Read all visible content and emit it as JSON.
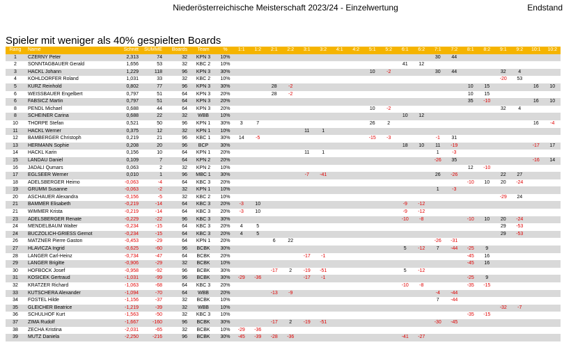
{
  "page": {
    "title": "Niederösterreichische Meisterschaft 2023/24 - Einzelwertung",
    "status": "Endstand",
    "subtitle": "Spieler mit weniger als 40% gespielten Boards"
  },
  "colors": {
    "header_bg": "#f5b400",
    "row_alt": "#d9d9d9",
    "negative": "#e00000"
  },
  "columns": [
    "Rang",
    "Name",
    "Schnitt",
    "SUMME",
    "Boards",
    "Team",
    "%",
    "1:1",
    "1:2",
    "2:1",
    "2:2",
    "3:1",
    "3:2",
    "4:1",
    "4:2",
    "5:1",
    "5:2",
    "6:1",
    "6:2",
    "7:1",
    "7:2",
    "8:1",
    "8:2",
    "9:1",
    "9:2",
    "10:1",
    "10:2"
  ],
  "rows": [
    {
      "rang": "1",
      "name": "CZERNY Peter",
      "schnitt": "2,313",
      "summe": "74",
      "boards": "32",
      "team": "KPN 3",
      "pct": "10%",
      "scores": [
        "",
        "",
        "",
        "",
        "",
        "",
        "",
        "",
        "",
        "",
        "",
        "",
        "30",
        "44",
        "",
        "",
        "",
        "",
        "",
        ""
      ]
    },
    {
      "rang": "2",
      "name": "SONNTAGBAUER Gerald",
      "schnitt": "1,656",
      "summe": "53",
      "boards": "32",
      "team": "KBC 2",
      "pct": "10%",
      "scores": [
        "",
        "",
        "",
        "",
        "",
        "",
        "",
        "",
        "",
        "",
        "41",
        "12",
        "",
        "",
        "",
        "",
        "",
        "",
        "",
        ""
      ]
    },
    {
      "rang": "3",
      "name": "HACKL Johann",
      "schnitt": "1,229",
      "summe": "118",
      "boards": "96",
      "team": "KPN 3",
      "pct": "30%",
      "scores": [
        "",
        "",
        "",
        "",
        "",
        "",
        "",
        "",
        "10",
        "-2",
        "",
        "",
        "30",
        "44",
        "",
        "",
        "32",
        "4",
        "",
        ""
      ]
    },
    {
      "rang": "4",
      "name": "KÖHLDORFER Roland",
      "schnitt": "1,031",
      "summe": "33",
      "boards": "32",
      "team": "KBC 2",
      "pct": "10%",
      "scores": [
        "",
        "",
        "",
        "",
        "",
        "",
        "",
        "",
        "",
        "",
        "",
        "",
        "",
        "",
        "",
        "",
        "-20",
        "53",
        "",
        ""
      ]
    },
    {
      "rang": "5",
      "name": "KURZ Reinhold",
      "schnitt": "0,802",
      "summe": "77",
      "boards": "96",
      "team": "KPN 3",
      "pct": "30%",
      "scores": [
        "",
        "",
        "28",
        "-2",
        "",
        "",
        "",
        "",
        "",
        "",
        "",
        "",
        "",
        "",
        "10",
        "15",
        "",
        "",
        "16",
        "10"
      ]
    },
    {
      "rang": "6",
      "name": "WEISSBAUER Engelbert",
      "schnitt": "0,797",
      "summe": "51",
      "boards": "64",
      "team": "KPN 3",
      "pct": "20%",
      "scores": [
        "",
        "",
        "28",
        "-2",
        "",
        "",
        "",
        "",
        "",
        "",
        "",
        "",
        "",
        "",
        "10",
        "15",
        "",
        "",
        "",
        ""
      ]
    },
    {
      "rang": "6",
      "name": "FABSICZ Martin",
      "schnitt": "0,797",
      "summe": "51",
      "boards": "64",
      "team": "KPN 3",
      "pct": "20%",
      "scores": [
        "",
        "",
        "",
        "",
        "",
        "",
        "",
        "",
        "",
        "",
        "",
        "",
        "",
        "",
        "35",
        "-10",
        "",
        "",
        "16",
        "10"
      ]
    },
    {
      "rang": "8",
      "name": "PENDL Michael",
      "schnitt": "0,688",
      "summe": "44",
      "boards": "64",
      "team": "KPN 3",
      "pct": "20%",
      "scores": [
        "",
        "",
        "",
        "",
        "",
        "",
        "",
        "",
        "10",
        "-2",
        "",
        "",
        "",
        "",
        "",
        "",
        "32",
        "4",
        "",
        ""
      ]
    },
    {
      "rang": "8",
      "name": "SCHEINER Carina",
      "schnitt": "0,688",
      "summe": "22",
      "boards": "32",
      "team": "WBB",
      "pct": "10%",
      "scores": [
        "",
        "",
        "",
        "",
        "",
        "",
        "",
        "",
        "",
        "",
        "10",
        "12",
        "",
        "",
        "",
        "",
        "",
        "",
        "",
        ""
      ]
    },
    {
      "rang": "10",
      "name": "THORPE Stefan",
      "schnitt": "0,521",
      "summe": "50",
      "boards": "96",
      "team": "KPN 1",
      "pct": "30%",
      "scores": [
        "3",
        "7",
        "",
        "",
        "",
        "",
        "",
        "",
        "26",
        "2",
        "",
        "",
        "",
        "",
        "",
        "",
        "",
        "",
        "16",
        "-4"
      ]
    },
    {
      "rang": "11",
      "name": "HACKL Werner",
      "schnitt": "0,375",
      "summe": "12",
      "boards": "32",
      "team": "KPN 1",
      "pct": "10%",
      "scores": [
        "",
        "",
        "",
        "",
        "11",
        "1",
        "",
        "",
        "",
        "",
        "",
        "",
        "",
        "",
        "",
        "",
        "",
        "",
        "",
        ""
      ]
    },
    {
      "rang": "12",
      "name": "BAMBERGER Christoph",
      "schnitt": "0,219",
      "summe": "21",
      "boards": "96",
      "team": "KBC 1",
      "pct": "30%",
      "scores": [
        "14",
        "-5",
        "",
        "",
        "",
        "",
        "",
        "",
        "-15",
        "-3",
        "",
        "",
        "-1",
        "31",
        "",
        "",
        "",
        "",
        "",
        ""
      ]
    },
    {
      "rang": "13",
      "name": "HERMANN Sophie",
      "schnitt": "0,208",
      "summe": "20",
      "boards": "96",
      "team": "BCP",
      "pct": "30%",
      "scores": [
        "",
        "",
        "",
        "",
        "",
        "",
        "",
        "",
        "",
        "",
        "18",
        "10",
        "11",
        "-19",
        "",
        "",
        "",
        "",
        "-17",
        "17"
      ]
    },
    {
      "rang": "14",
      "name": "HACKL Karin",
      "schnitt": "0,156",
      "summe": "10",
      "boards": "64",
      "team": "KPN 1",
      "pct": "20%",
      "scores": [
        "",
        "",
        "",
        "",
        "11",
        "1",
        "",
        "",
        "",
        "",
        "",
        "",
        "1",
        "-3",
        "",
        "",
        "",
        "",
        "",
        ""
      ]
    },
    {
      "rang": "15",
      "name": "LANDAU Daniel",
      "schnitt": "0,109",
      "summe": "7",
      "boards": "64",
      "team": "KPN 2",
      "pct": "20%",
      "scores": [
        "",
        "",
        "",
        "",
        "",
        "",
        "",
        "",
        "",
        "",
        "",
        "",
        "-26",
        "35",
        "",
        "",
        "",
        "",
        "-16",
        "14"
      ]
    },
    {
      "rang": "16",
      "name": "JADALI Qumars",
      "schnitt": "0,063",
      "summe": "2",
      "boards": "32",
      "team": "KPN 2",
      "pct": "10%",
      "scores": [
        "",
        "",
        "",
        "",
        "",
        "",
        "",
        "",
        "",
        "",
        "",
        "",
        "",
        "",
        "12",
        "-10",
        "",
        "",
        "",
        ""
      ]
    },
    {
      "rang": "17",
      "name": "EGLSEER Werner",
      "schnitt": "0,010",
      "summe": "1",
      "boards": "96",
      "team": "MBC 1",
      "pct": "30%",
      "scores": [
        "",
        "",
        "",
        "",
        "-7",
        "-41",
        "",
        "",
        "",
        "",
        "",
        "",
        "26",
        "-26",
        "",
        "",
        "22",
        "27",
        "",
        ""
      ]
    },
    {
      "rang": "18",
      "name": "ADELSBERGER Heimo",
      "schnitt": "-0,063",
      "summe": "-4",
      "boards": "64",
      "team": "KBC 3",
      "pct": "20%",
      "scores": [
        "",
        "",
        "",
        "",
        "",
        "",
        "",
        "",
        "",
        "",
        "",
        "",
        "",
        "",
        "-10",
        "10",
        "20",
        "-24",
        "",
        ""
      ]
    },
    {
      "rang": "19",
      "name": "GRÜMM Susanne",
      "schnitt": "-0,063",
      "summe": "-2",
      "boards": "32",
      "team": "KPN 1",
      "pct": "10%",
      "scores": [
        "",
        "",
        "",
        "",
        "",
        "",
        "",
        "",
        "",
        "",
        "",
        "",
        "1",
        "-3",
        "",
        "",
        "",
        "",
        "",
        ""
      ]
    },
    {
      "rang": "20",
      "name": "ASCHAUER Alexandra",
      "schnitt": "-0,156",
      "summe": "-5",
      "boards": "32",
      "team": "KBC 2",
      "pct": "10%",
      "scores": [
        "",
        "",
        "",
        "",
        "",
        "",
        "",
        "",
        "",
        "",
        "",
        "",
        "",
        "",
        "",
        "",
        "-29",
        "24",
        "",
        ""
      ]
    },
    {
      "rang": "21",
      "name": "BAMMER Elisabeth",
      "schnitt": "-0,219",
      "summe": "-14",
      "boards": "64",
      "team": "KBC 3",
      "pct": "20%",
      "scores": [
        "-3",
        "10",
        "",
        "",
        "",
        "",
        "",
        "",
        "",
        "",
        "-9",
        "-12",
        "",
        "",
        "",
        "",
        "",
        "",
        "",
        ""
      ]
    },
    {
      "rang": "21",
      "name": "WIMMER Krista",
      "schnitt": "-0,219",
      "summe": "-14",
      "boards": "64",
      "team": "KBC 3",
      "pct": "20%",
      "scores": [
        "-3",
        "10",
        "",
        "",
        "",
        "",
        "",
        "",
        "",
        "",
        "-9",
        "-12",
        "",
        "",
        "",
        "",
        "",
        "",
        "",
        ""
      ]
    },
    {
      "rang": "23",
      "name": "ADELSBERGER Renate",
      "schnitt": "-0,229",
      "summe": "-22",
      "boards": "96",
      "team": "KBC 3",
      "pct": "30%",
      "scores": [
        "",
        "",
        "",
        "",
        "",
        "",
        "",
        "",
        "",
        "",
        "-10",
        "-8",
        "",
        "",
        "-10",
        "10",
        "20",
        "-24",
        "",
        ""
      ]
    },
    {
      "rang": "24",
      "name": "MENDELBAUM Walter",
      "schnitt": "-0,234",
      "summe": "-15",
      "boards": "64",
      "team": "KBC 3",
      "pct": "20%",
      "scores": [
        "4",
        "5",
        "",
        "",
        "",
        "",
        "",
        "",
        "",
        "",
        "",
        "",
        "",
        "",
        "",
        "",
        "29",
        "-53",
        "",
        ""
      ]
    },
    {
      "rang": "24",
      "name": "BUCZOLICH-GRIESS Gernot",
      "schnitt": "-0,234",
      "summe": "-15",
      "boards": "64",
      "team": "KBC 3",
      "pct": "20%",
      "scores": [
        "4",
        "5",
        "",
        "",
        "",
        "",
        "",
        "",
        "",
        "",
        "",
        "",
        "",
        "",
        "",
        "",
        "29",
        "-53",
        "",
        ""
      ]
    },
    {
      "rang": "26",
      "name": "MATZNER Pierre Gaston",
      "schnitt": "-0,453",
      "summe": "-29",
      "boards": "64",
      "team": "KPN 1",
      "pct": "20%",
      "scores": [
        "",
        "",
        "6",
        "22",
        "",
        "",
        "",
        "",
        "",
        "",
        "",
        "",
        "-26",
        "-31",
        "",
        "",
        "",
        "",
        "",
        ""
      ]
    },
    {
      "rang": "27",
      "name": "HLAVICZA Ingrid",
      "schnitt": "-0,625",
      "summe": "-60",
      "boards": "96",
      "team": "BCBK",
      "pct": "30%",
      "scores": [
        "",
        "",
        "",
        "",
        "",
        "",
        "",
        "",
        "",
        "",
        "5",
        "-12",
        "7",
        "-44",
        "-25",
        "9",
        "",
        "",
        "",
        ""
      ]
    },
    {
      "rang": "28",
      "name": "LANGER Carl-Heinz",
      "schnitt": "-0,734",
      "summe": "-47",
      "boards": "64",
      "team": "BCBK",
      "pct": "20%",
      "scores": [
        "",
        "",
        "",
        "",
        "-17",
        "-1",
        "",
        "",
        "",
        "",
        "",
        "",
        "",
        "",
        "-45",
        "16",
        "",
        "",
        "",
        ""
      ]
    },
    {
      "rang": "29",
      "name": "LANGER Brigitte",
      "schnitt": "-0,906",
      "summe": "-29",
      "boards": "32",
      "team": "BCBK",
      "pct": "10%",
      "scores": [
        "",
        "",
        "",
        "",
        "",
        "",
        "",
        "",
        "",
        "",
        "",
        "",
        "",
        "",
        "-45",
        "16",
        "",
        "",
        "",
        ""
      ]
    },
    {
      "rang": "30",
      "name": "HOFBÖCK Josef",
      "schnitt": "-0,958",
      "summe": "-92",
      "boards": "96",
      "team": "BCBK",
      "pct": "30%",
      "scores": [
        "",
        "",
        "-17",
        "2",
        "-19",
        "-51",
        "",
        "",
        "",
        "",
        "5",
        "-12",
        "",
        "",
        "",
        "",
        "",
        "",
        "",
        ""
      ]
    },
    {
      "rang": "31",
      "name": "KOSICEK Gertraud",
      "schnitt": "-1,031",
      "summe": "-99",
      "boards": "96",
      "team": "BCBK",
      "pct": "30%",
      "scores": [
        "-29",
        "-36",
        "",
        "",
        "-17",
        "-1",
        "",
        "",
        "",
        "",
        "",
        "",
        "",
        "",
        "-25",
        "9",
        "",
        "",
        "",
        ""
      ]
    },
    {
      "rang": "32",
      "name": "KRATZER Richard",
      "schnitt": "-1,063",
      "summe": "-68",
      "boards": "64",
      "team": "KBC 3",
      "pct": "20%",
      "scores": [
        "",
        "",
        "",
        "",
        "",
        "",
        "",
        "",
        "",
        "",
        "-10",
        "-8",
        "",
        "",
        "-35",
        "-15",
        "",
        "",
        "",
        ""
      ]
    },
    {
      "rang": "33",
      "name": "KUTSCHERA Alexander",
      "schnitt": "-1,094",
      "summe": "-70",
      "boards": "64",
      "team": "WBB",
      "pct": "20%",
      "scores": [
        "",
        "",
        "-13",
        "-9",
        "",
        "",
        "",
        "",
        "",
        "",
        "",
        "",
        "-4",
        "-44",
        "",
        "",
        "",
        "",
        "",
        ""
      ]
    },
    {
      "rang": "34",
      "name": "FOSTEL Hilde",
      "schnitt": "-1,156",
      "summe": "-37",
      "boards": "32",
      "team": "BCBK",
      "pct": "10%",
      "scores": [
        "",
        "",
        "",
        "",
        "",
        "",
        "",
        "",
        "",
        "",
        "",
        "",
        "7",
        "-44",
        "",
        "",
        "",
        "",
        "",
        ""
      ]
    },
    {
      "rang": "35",
      "name": "GLEICHER Beatrice",
      "schnitt": "-1,219",
      "summe": "-39",
      "boards": "32",
      "team": "WBB",
      "pct": "10%",
      "scores": [
        "",
        "",
        "",
        "",
        "",
        "",
        "",
        "",
        "",
        "",
        "",
        "",
        "",
        "",
        "",
        "",
        "-32",
        "-7",
        "",
        ""
      ]
    },
    {
      "rang": "36",
      "name": "SCHULHOF Kurt",
      "schnitt": "-1,563",
      "summe": "-50",
      "boards": "32",
      "team": "KBC 3",
      "pct": "10%",
      "scores": [
        "",
        "",
        "",
        "",
        "",
        "",
        "",
        "",
        "",
        "",
        "",
        "",
        "",
        "",
        "-35",
        "-15",
        "",
        "",
        "",
        ""
      ]
    },
    {
      "rang": "37",
      "name": "ZIMA Rudolf",
      "schnitt": "-1,667",
      "summe": "-160",
      "boards": "96",
      "team": "BCBK",
      "pct": "30%",
      "scores": [
        "",
        "",
        "-17",
        "2",
        "-19",
        "-51",
        "",
        "",
        "",
        "",
        "",
        "",
        "-30",
        "-45",
        "",
        "",
        "",
        "",
        "",
        ""
      ]
    },
    {
      "rang": "38",
      "name": "ZECHA Kristina",
      "schnitt": "-2,031",
      "summe": "-65",
      "boards": "32",
      "team": "BCBK",
      "pct": "10%",
      "scores": [
        "-29",
        "-36",
        "",
        "",
        "",
        "",
        "",
        "",
        "",
        "",
        "",
        "",
        "",
        "",
        "",
        "",
        "",
        "",
        "",
        ""
      ]
    },
    {
      "rang": "39",
      "name": "MUTZ Daniela",
      "schnitt": "-2,250",
      "summe": "-216",
      "boards": "96",
      "team": "BCBK",
      "pct": "30%",
      "scores": [
        "-45",
        "-39",
        "-28",
        "-36",
        "",
        "",
        "",
        "",
        "",
        "",
        "-41",
        "-27",
        "",
        "",
        "",
        "",
        "",
        "",
        "",
        ""
      ]
    }
  ]
}
